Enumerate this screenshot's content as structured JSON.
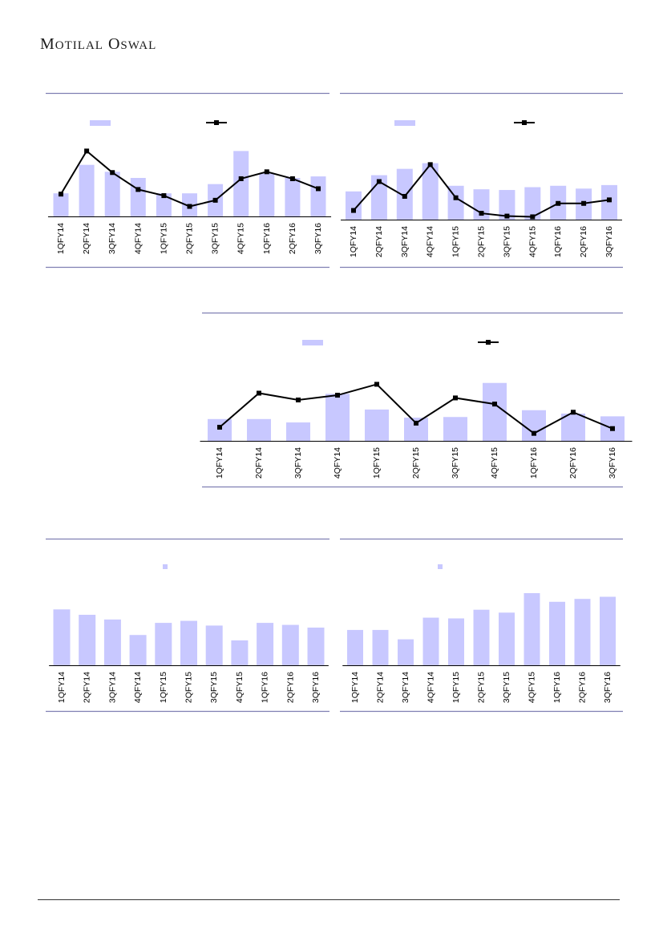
{
  "brand": {
    "name": "Motilal Oswal"
  },
  "colors": {
    "bar": "#c8c8ff",
    "line": "#000000",
    "rule": "#7f7fb2",
    "axis": "#000000"
  },
  "chart_data": [
    {
      "type": "bar+line",
      "categories": [
        "1QFY14",
        "2QFY14",
        "3QFY14",
        "4QFY14",
        "1QFY15",
        "2QFY15",
        "3QFY15",
        "4QFY15",
        "1QFY16",
        "2QFY16",
        "3QFY16"
      ],
      "series": [
        {
          "kind": "bar",
          "values": [
            30,
            67,
            58,
            50,
            30,
            30,
            42,
            85,
            56,
            50,
            52
          ]
        },
        {
          "kind": "line",
          "values": [
            29,
            85,
            57,
            35,
            27,
            13,
            21,
            49,
            58,
            49,
            36
          ]
        }
      ],
      "ylim": [
        0,
        100
      ]
    },
    {
      "type": "bar+line",
      "categories": [
        "1QFY14",
        "2QFY14",
        "3QFY14",
        "4QFY14",
        "1QFY15",
        "2QFY15",
        "3QFY15",
        "4QFY15",
        "1QFY16",
        "2QFY16",
        "3QFY16"
      ],
      "series": [
        {
          "kind": "bar",
          "values": [
            40,
            63,
            72,
            80,
            48,
            43,
            42,
            46,
            48,
            44,
            49
          ]
        },
        {
          "kind": "line",
          "values": [
            13,
            54,
            33,
            78,
            31,
            9,
            5,
            4,
            23,
            23,
            28
          ]
        }
      ],
      "ylim": [
        0,
        100
      ]
    },
    {
      "type": "bar+line",
      "categories": [
        "1QFY14",
        "2QFY14",
        "3QFY14",
        "4QFY14",
        "1QFY15",
        "2QFY15",
        "3QFY15",
        "4QFY15",
        "1QFY16",
        "2QFY16",
        "3QFY16"
      ],
      "series": [
        {
          "kind": "bar",
          "values": [
            32,
            32,
            27,
            69,
            46,
            34,
            35,
            85,
            45,
            40,
            36
          ]
        },
        {
          "kind": "line",
          "values": [
            20,
            70,
            60,
            67,
            83,
            26,
            63,
            54,
            11,
            42,
            18
          ]
        }
      ],
      "ylim": [
        0,
        100
      ]
    },
    {
      "type": "bar",
      "categories": [
        "1QFY14",
        "2QFY14",
        "3QFY14",
        "4QFY14",
        "1QFY15",
        "2QFY15",
        "3QFY15",
        "4QFY15",
        "1QFY16",
        "2QFY16",
        "3QFY16"
      ],
      "series": [
        {
          "kind": "bar",
          "values": [
            83,
            75,
            68,
            45,
            63,
            66,
            59,
            37,
            63,
            60,
            56
          ]
        }
      ],
      "ylim": [
        0,
        100
      ]
    },
    {
      "type": "bar",
      "categories": [
        "1QFY14",
        "2QFY14",
        "3QFY14",
        "4QFY14",
        "1QFY15",
        "2QFY15",
        "3QFY15",
        "4QFY15",
        "1QFY16",
        "2QFY16",
        "3QFY16"
      ],
      "series": [
        {
          "kind": "bar",
          "values": [
            49,
            49,
            36,
            66,
            65,
            77,
            73,
            100,
            88,
            92,
            95
          ]
        }
      ],
      "ylim": [
        0,
        100
      ]
    }
  ]
}
